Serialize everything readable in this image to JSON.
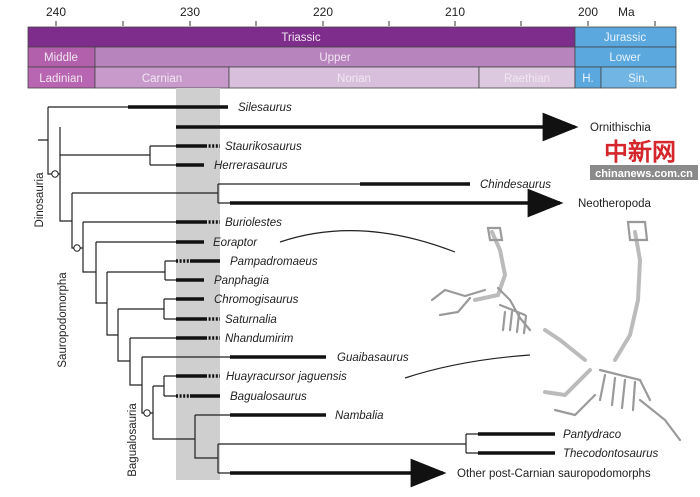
{
  "timescale": {
    "unit": "Ma",
    "ticks": [
      "240",
      "230",
      "220",
      "210",
      "200"
    ],
    "periods": [
      "Triassic",
      "Jurassic"
    ],
    "epochs": [
      "Middle",
      "Upper",
      "Lower"
    ],
    "stages": [
      "Ladinian",
      "Carnian",
      "Norian",
      "Raethian",
      "H.",
      "Sin."
    ],
    "colors": {
      "triassic": "#7e2d8c",
      "epoch": "#b784bd",
      "jurassic": "#4fa3dc"
    }
  },
  "taxa": [
    "Silesaurus",
    "Staurikosaurus",
    "Herrerasaurus",
    "Chindesaurus",
    "Buriolestes",
    "Eoraptor",
    "Pampadromaeus",
    "Panphagia",
    "Chromogisaurus",
    "Saturnalia",
    "Nhandumirim",
    "Guaibasaurus",
    "Huayracursor jaguensis",
    "Bagualosaurus",
    "Nambalia",
    "Pantydraco",
    "Thecodontosaurus"
  ],
  "lineages": [
    "Ornithischia",
    "Neotheropoda",
    "Other post-Carnian sauropodomorphs"
  ],
  "clades": [
    "Dinosauria",
    "Sauropodomorpha",
    "Bagualosauria"
  ],
  "watermark": {
    "chars": "中新网",
    "site": "chinanews.com.cn"
  }
}
